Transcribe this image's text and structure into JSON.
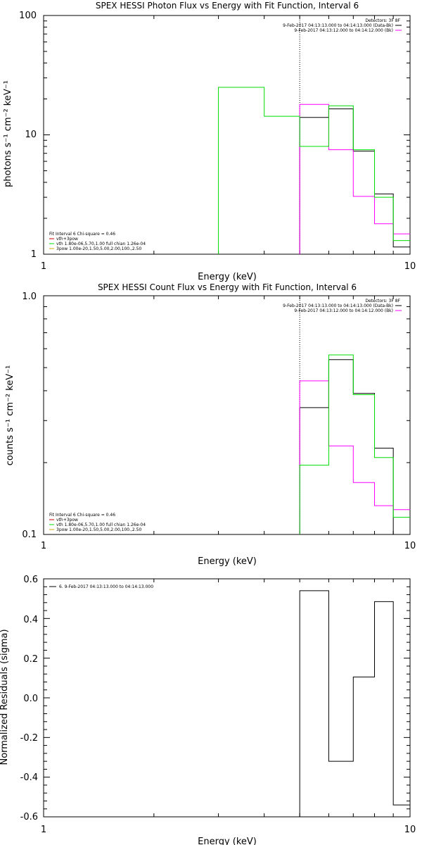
{
  "panels": [
    {
      "title": "SPEX HESSI Photon Flux vs Energy with Fit Function, Interval 6",
      "xlabel": "Energy (keV)",
      "ylabel": "photons s⁻¹ cm⁻² keV⁻¹",
      "xticks": [
        "1",
        "10"
      ],
      "yticks": [
        "1",
        "10",
        "100"
      ],
      "legend_top": [
        "Detectors: 3F 8F",
        "9-Feb-2017 04:13:13.000 to 04:14:13.000 (Data-Bk)",
        "9-Feb-2017 04:13:12.000 to 04:14:12.000 (Bk)"
      ],
      "legend_bottom": [
        "Fit Interval 6   Chi-square = 0.46",
        "vth+3pow",
        "vth 1.80e-06,5.70,1.00  full chian 1.26e-04",
        "3pow 1.00e-20,1.50,5.00,2.00,100.,2.50"
      ]
    },
    {
      "title": "SPEX HESSI Count Flux vs Energy with Fit Function, Interval 6",
      "xlabel": "Energy (keV)",
      "ylabel": "counts s⁻¹ cm⁻² keV⁻¹",
      "xticks": [
        "1",
        "10"
      ],
      "yticks": [
        "0.1",
        "1.0"
      ],
      "legend_top": [
        "Detectors: 3F 8F",
        "9-Feb-2017 04:13:13.000 to 04:14:13.000 (Data-Bk)",
        "9-Feb-2017 04:13:12.000 to 04:14:12.000 (Bk)"
      ],
      "legend_bottom": [
        "Fit Interval 6   Chi-square = 0.46",
        "vth+3pow",
        "vth 1.80e-06,5.70,1.00  full chian 1.26e-04",
        "3pow 1.00e-20,1.50,5.00,2.00,100.,2.50"
      ]
    },
    {
      "title": "",
      "xlabel": "Energy (keV)",
      "ylabel": "Normalized Residuals (sigma)",
      "xticks": [
        "1",
        "10"
      ],
      "yticks": [
        "-0.6",
        "-0.4",
        "-0.2",
        "0.0",
        "0.2",
        "0.4",
        "0.6"
      ],
      "legend_top": [
        "6. 9-Feb-2017 04:13:13.000 to 04:14:13.000"
      ],
      "legend_bottom": []
    }
  ],
  "chart_data": [
    {
      "type": "line",
      "title": "SPEX HESSI Photon Flux vs Energy with Fit Function, Interval 6",
      "xlabel": "Energy (keV)",
      "ylabel": "photons s⁻¹ cm⁻² keV⁻¹",
      "xscale": "log",
      "yscale": "log",
      "xlim": [
        1,
        10
      ],
      "ylim": [
        1,
        100
      ],
      "grid": false,
      "legend_placement": "top-right and bottom-left",
      "marker_x": 5.0,
      "series": [
        {
          "name": "9-Feb-2017 04:13:13.000 to 04:14:13.000 (Data-Bk)",
          "color": "#000000",
          "edges": [
            5.0,
            6.0,
            7.0,
            8.0,
            9.0,
            10.0
          ],
          "values": [
            14.0,
            16.5,
            7.3,
            3.2,
            1.15
          ]
        },
        {
          "name": "9-Feb-2017 04:13:12.000 to 04:14:12.000 (Bk)",
          "color": "#ff00ff",
          "edges": [
            5.0,
            6.0,
            7.0,
            8.0,
            9.0,
            10.0
          ],
          "values": [
            18.0,
            7.5,
            3.05,
            1.8,
            1.48
          ]
        },
        {
          "name": "vth+3pow",
          "color": "#00dd00",
          "edges": [
            3.0,
            4.0,
            5.0,
            6.0,
            7.0,
            8.0,
            9.0,
            10.0
          ],
          "values": [
            25.0,
            14.3,
            8.0,
            17.5,
            7.5,
            3.0,
            1.3
          ]
        }
      ]
    },
    {
      "type": "line",
      "title": "SPEX HESSI Count Flux vs Energy with Fit Function, Interval 6",
      "xlabel": "Energy (keV)",
      "ylabel": "counts s⁻¹ cm⁻² keV⁻¹",
      "xscale": "log",
      "yscale": "log",
      "xlim": [
        1,
        10
      ],
      "ylim": [
        0.1,
        1.0
      ],
      "grid": false,
      "legend_placement": "top-right and bottom-left",
      "marker_x": 5.0,
      "series": [
        {
          "name": "9-Feb-2017 04:13:13.000 to 04:14:13.000 (Data-Bk)",
          "color": "#000000",
          "edges": [
            5.0,
            6.0,
            7.0,
            8.0,
            9.0,
            10.0
          ],
          "values": [
            0.34,
            0.54,
            0.39,
            0.23,
            0.1
          ]
        },
        {
          "name": "9-Feb-2017 04:13:12.000 to 04:14:12.000 (Bk)",
          "color": "#ff00ff",
          "edges": [
            5.0,
            6.0,
            7.0,
            8.0,
            9.0,
            10.0
          ],
          "values": [
            0.44,
            0.235,
            0.165,
            0.132,
            0.127
          ]
        },
        {
          "name": "vth+3pow",
          "color": "#00dd00",
          "edges": [
            5.0,
            6.0,
            7.0,
            8.0,
            9.0,
            10.0
          ],
          "values": [
            0.195,
            0.565,
            0.385,
            0.21,
            0.118
          ]
        }
      ]
    },
    {
      "type": "line",
      "title": "",
      "xlabel": "Energy (keV)",
      "ylabel": "Normalized Residuals (sigma)",
      "xscale": "log",
      "yscale": "linear",
      "xlim": [
        1,
        10
      ],
      "ylim": [
        -0.6,
        0.6
      ],
      "grid": false,
      "legend_placement": "top-left",
      "series": [
        {
          "name": "6. 9-Feb-2017 04:13:13.000 to 04:14:13.000",
          "color": "#000000",
          "edges": [
            5.0,
            6.0,
            7.0,
            8.0,
            9.0,
            10.0
          ],
          "values": [
            0.54,
            -0.32,
            0.105,
            0.485,
            -0.54
          ]
        }
      ]
    }
  ]
}
